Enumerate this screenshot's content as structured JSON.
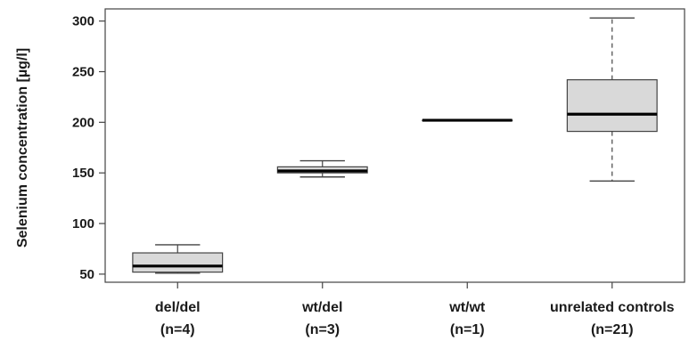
{
  "chart_data": {
    "type": "boxplot",
    "ylabel": "Selenium concentration [µg/l]",
    "ylim": [
      42,
      312
    ],
    "yticks": [
      50,
      100,
      150,
      200,
      250,
      300
    ],
    "grid": false,
    "categories": [
      {
        "line1": "del/del",
        "line2": "(n=4)"
      },
      {
        "line1": "wt/del",
        "line2": "(n=3)"
      },
      {
        "line1": "wt/wt",
        "line2": "(n=1)"
      },
      {
        "line1": "unrelated controls",
        "line2": "(n=21)"
      }
    ],
    "boxes": [
      {
        "whisker_low": 51,
        "q1": 52,
        "median": 58,
        "q3": 71,
        "whisker_high": 79,
        "whisker_style": "solid"
      },
      {
        "whisker_low": 146,
        "q1": 150,
        "median": 152,
        "q3": 156,
        "whisker_high": 162,
        "whisker_style": "solid"
      },
      {
        "whisker_low": 202,
        "q1": 202,
        "median": 202,
        "q3": 202,
        "whisker_high": 202,
        "whisker_style": "solid"
      },
      {
        "whisker_low": 142,
        "q1": 191,
        "median": 208,
        "q3": 242,
        "whisker_high": 303,
        "whisker_style": "dashed"
      }
    ],
    "colors": {
      "box_fill": "#d9d9d9",
      "stroke": "#444444",
      "median": "#000000"
    }
  }
}
